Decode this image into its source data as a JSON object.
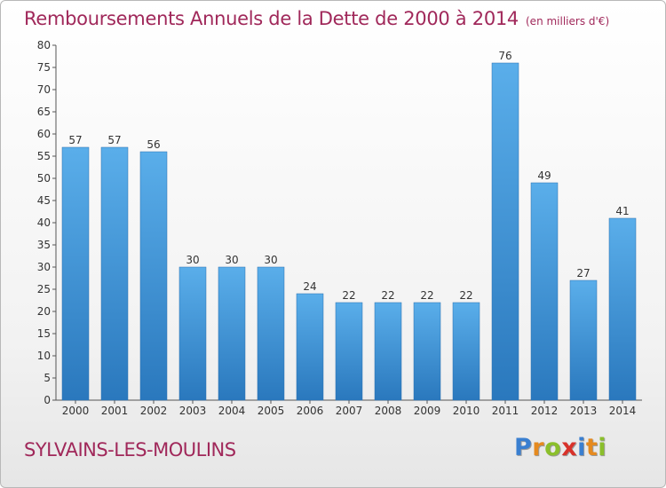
{
  "title": "Remboursements Annuels de la Dette de 2000 à 2014",
  "unit": "(en milliers d'€)",
  "town": "SYLVAINS-LES-MOULINS",
  "logo": {
    "letters": [
      "P",
      "r",
      "o",
      "x",
      "i",
      "t",
      "i"
    ],
    "colors": [
      "#3a7fd0",
      "#e58a1f",
      "#8bbf2b",
      "#d8322a",
      "#3a7fd0",
      "#e58a1f",
      "#8bbf2b"
    ]
  },
  "colors": {
    "bar": "#4f9fde",
    "bar_dark": "#2f7ec4",
    "text": "#a0285a"
  },
  "chart_data": {
    "type": "bar",
    "categories": [
      "2000",
      "2001",
      "2002",
      "2003",
      "2004",
      "2005",
      "2006",
      "2007",
      "2008",
      "2009",
      "2010",
      "2011",
      "2012",
      "2013",
      "2014"
    ],
    "values": [
      57,
      57,
      56,
      30,
      30,
      30,
      24,
      22,
      22,
      22,
      22,
      76,
      49,
      27,
      41
    ],
    "ylim": [
      0,
      80
    ],
    "yticks": [
      0,
      5,
      10,
      15,
      20,
      25,
      30,
      35,
      40,
      45,
      50,
      55,
      60,
      65,
      70,
      75,
      80
    ],
    "data_labels": true,
    "grid": false
  }
}
